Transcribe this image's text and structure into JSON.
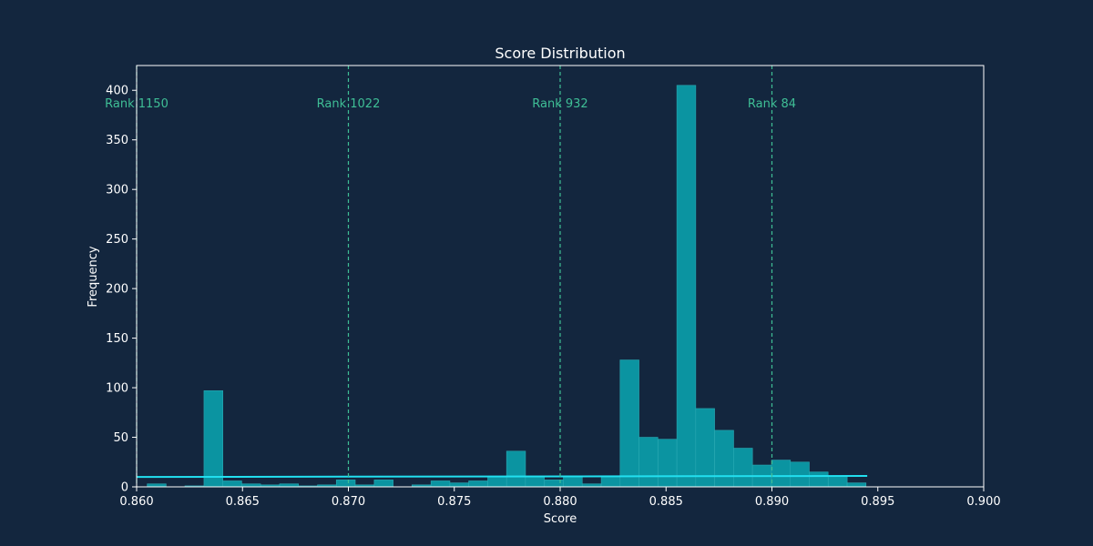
{
  "chart_data": {
    "type": "bar",
    "title": "Score Distribution",
    "xlabel": "Score",
    "ylabel": "Frequency",
    "xlim": [
      0.86,
      0.9
    ],
    "ylim": [
      0,
      425
    ],
    "xticks": [
      "0.860",
      "0.865",
      "0.870",
      "0.875",
      "0.880",
      "0.885",
      "0.890",
      "0.895",
      "0.900"
    ],
    "xtick_values": [
      0.86,
      0.865,
      0.87,
      0.875,
      0.88,
      0.885,
      0.89,
      0.895,
      0.9
    ],
    "yticks": [
      "0",
      "50",
      "100",
      "150",
      "200",
      "250",
      "300",
      "350",
      "400"
    ],
    "ytick_values": [
      0,
      50,
      100,
      150,
      200,
      250,
      300,
      350,
      400
    ],
    "grid": false,
    "bin_width": 0.000893,
    "bins": [
      {
        "x0": 0.8605,
        "count": 3
      },
      {
        "x0": 0.86139,
        "count": 0
      },
      {
        "x0": 0.86228,
        "count": 1
      },
      {
        "x0": 0.86318,
        "count": 97
      },
      {
        "x0": 0.86407,
        "count": 6
      },
      {
        "x0": 0.86496,
        "count": 3
      },
      {
        "x0": 0.86586,
        "count": 2
      },
      {
        "x0": 0.86675,
        "count": 3
      },
      {
        "x0": 0.86764,
        "count": 1
      },
      {
        "x0": 0.86854,
        "count": 2
      },
      {
        "x0": 0.86943,
        "count": 7
      },
      {
        "x0": 0.87032,
        "count": 2
      },
      {
        "x0": 0.87122,
        "count": 7
      },
      {
        "x0": 0.87211,
        "count": 0
      },
      {
        "x0": 0.873,
        "count": 2
      },
      {
        "x0": 0.8739,
        "count": 6
      },
      {
        "x0": 0.87479,
        "count": 4
      },
      {
        "x0": 0.87568,
        "count": 6
      },
      {
        "x0": 0.87658,
        "count": 10
      },
      {
        "x0": 0.87747,
        "count": 36
      },
      {
        "x0": 0.87836,
        "count": 10
      },
      {
        "x0": 0.87926,
        "count": 7
      },
      {
        "x0": 0.88015,
        "count": 10
      },
      {
        "x0": 0.88104,
        "count": 3
      },
      {
        "x0": 0.88194,
        "count": 10
      },
      {
        "x0": 0.88283,
        "count": 128
      },
      {
        "x0": 0.88372,
        "count": 50
      },
      {
        "x0": 0.88462,
        "count": 48
      },
      {
        "x0": 0.88551,
        "count": 405
      },
      {
        "x0": 0.8864,
        "count": 79
      },
      {
        "x0": 0.8873,
        "count": 57
      },
      {
        "x0": 0.88819,
        "count": 39
      },
      {
        "x0": 0.88908,
        "count": 22
      },
      {
        "x0": 0.88998,
        "count": 27
      },
      {
        "x0": 0.89087,
        "count": 25
      },
      {
        "x0": 0.89176,
        "count": 15
      },
      {
        "x0": 0.89266,
        "count": 11
      },
      {
        "x0": 0.89355,
        "count": 4
      }
    ],
    "trend_line": {
      "x": [
        0.86,
        0.8945
      ],
      "y": [
        10,
        11
      ],
      "color": "#22e0f0"
    },
    "rank_markers": [
      {
        "label": "Rank 1150",
        "x": 0.86
      },
      {
        "label": "Rank 1022",
        "x": 0.87
      },
      {
        "label": "Rank 932",
        "x": 0.88
      },
      {
        "label": "Rank 84",
        "x": 0.89
      }
    ],
    "colors": {
      "background": "#13263e",
      "bar_fill": "#0b9aa6",
      "bar_edge": "#2aa9b3",
      "marker": "#3fbf96",
      "text": "#ffffff",
      "axis": "#ffffff"
    }
  }
}
